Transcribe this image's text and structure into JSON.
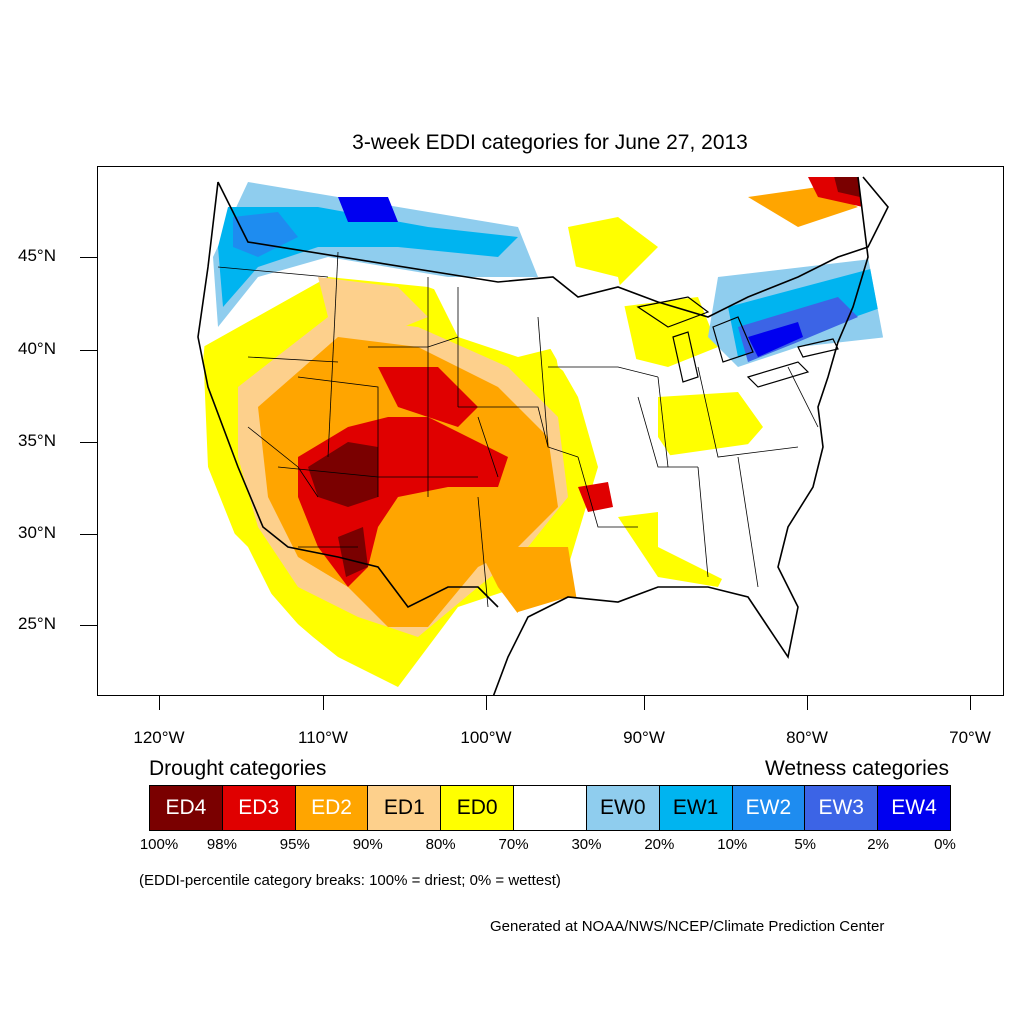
{
  "title": "3-week EDDI categories for June 27, 2013",
  "axes": {
    "lat_labels": [
      "45°N",
      "40°N",
      "35°N",
      "30°N",
      "25°N"
    ],
    "lon_labels": [
      "120°W",
      "110°W",
      "100°W",
      "90°W",
      "80°W",
      "70°W"
    ]
  },
  "legend": {
    "drought_heading": "Drought categories",
    "wetness_heading": "Wetness categories",
    "categories": [
      {
        "label": "ED4",
        "color": "#7a0000",
        "text_color": "#ffffff"
      },
      {
        "label": "ED3",
        "color": "#e00000",
        "text_color": "#ffffff"
      },
      {
        "label": "ED2",
        "color": "#ffa500",
        "text_color": "#ffffff"
      },
      {
        "label": "ED1",
        "color": "#fdd08c",
        "text_color": "#000000"
      },
      {
        "label": "ED0",
        "color": "#ffff00",
        "text_color": "#000000"
      },
      {
        "label": "",
        "color": "#ffffff",
        "text_color": "#000000"
      },
      {
        "label": "EW0",
        "color": "#8fcdee",
        "text_color": "#000000"
      },
      {
        "label": "EW1",
        "color": "#00b4f0",
        "text_color": "#000000"
      },
      {
        "label": "EW2",
        "color": "#1e8cf0",
        "text_color": "#ffffff"
      },
      {
        "label": "EW3",
        "color": "#3c64e6",
        "text_color": "#ffffff"
      },
      {
        "label": "EW4",
        "color": "#0000f0",
        "text_color": "#ffffff"
      }
    ],
    "percentiles": [
      "100%",
      "98%",
      "95%",
      "90%",
      "80%",
      "70%",
      "30%",
      "20%",
      "10%",
      "5%",
      "2%",
      "0%"
    ]
  },
  "note": "(EDDI-percentile category breaks: 100% = driest; 0% = wettest)",
  "credit": "Generated at NOAA/NWS/NCEP/Climate Prediction Center"
}
